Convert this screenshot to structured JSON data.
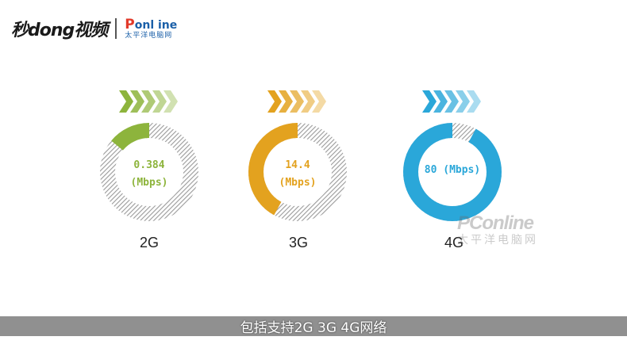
{
  "logo": {
    "miaodong": "秒dong视频",
    "pconline_main": "onl ine",
    "pconline_p": "P",
    "pconline_sub": "太平洋电脑网"
  },
  "gauges": [
    {
      "id": "2g",
      "label": "2G",
      "value_line1": "0.384",
      "value_line2": "(Mbps)",
      "fraction": 0.14,
      "color": "#8db43c",
      "chevron_color": "#8db43c"
    },
    {
      "id": "3g",
      "label": "3G",
      "value_line1": "14.4",
      "value_line2": "(Mbps)",
      "fraction": 0.42,
      "color": "#e3a21f",
      "chevron_color": "#e3a21f"
    },
    {
      "id": "4g",
      "label": "4G",
      "value_line1": "80 (Mbps)",
      "value_line2": "",
      "fraction": 0.92,
      "color": "#2aa7d9",
      "chevron_color": "#2aa7d9"
    }
  ],
  "watermark": {
    "main": "PConline",
    "sub": "太平洋电脑网"
  },
  "subtitle": "包括支持2G 3G 4G网络"
}
